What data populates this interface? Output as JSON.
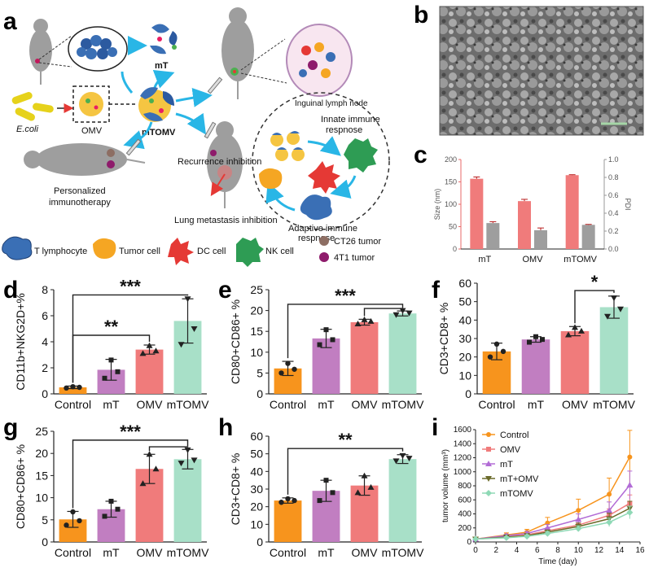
{
  "figure_labels": [
    "a",
    "b",
    "c",
    "d",
    "e",
    "f",
    "g",
    "h",
    "i"
  ],
  "schematic": {
    "labels": {
      "mT": "mT",
      "inguinal": "Inguinal lymph node",
      "ecoli": "E.coli",
      "omv": "OMV",
      "mtomv": "mTOMV",
      "innate": "Innate immune",
      "innate2": "respnose",
      "recurrence": "Recurrence inhibition",
      "personalized1": "Personalized",
      "personalized2": "immunotherapy",
      "lung": "Lung metastasis inhibition",
      "adaptive1": "Adaptive immune",
      "adaptive2": "respnose"
    },
    "legend": {
      "t_lymphocyte": "T lymphocyte",
      "tumor_cell": "Tumor cell",
      "dc_cell": "DC cell",
      "nk_cell": "NK cell",
      "ct26": "CT26 tumor",
      "t4t1": "4T1 tumor"
    },
    "colors": {
      "arrow": "#29b6e6",
      "mouse": "#9e9e9e",
      "tumor": "#f5a623",
      "dc": "#e53935",
      "nk": "#2e9c54",
      "tcell": "#3a6fb5",
      "ct26": "#8d6e63",
      "t4t1": "#8e1b6b"
    }
  },
  "colors": {
    "control": "#f7941d",
    "mT": "#c17ec1",
    "OMV": "#f07b7b",
    "mTOMV": "#a8e0c8",
    "size_bar": "#f07b7b",
    "pdi_bar": "#9e9e9e",
    "size_axis": "#e86a6a",
    "pdi_axis": "#999999"
  },
  "chart_data": [
    {
      "panel": "c",
      "type": "bar",
      "categories": [
        "mT",
        "OMV",
        "mTOMV"
      ],
      "series": [
        {
          "name": "Size (nm)",
          "axis": "left",
          "values": [
            157,
            107,
            165
          ],
          "errors": [
            4,
            4,
            1
          ]
        },
        {
          "name": "PDI",
          "axis": "right",
          "values": [
            0.29,
            0.21,
            0.27
          ],
          "errors": [
            0.015,
            0.025,
            0.005
          ]
        }
      ],
      "ylabel": "Size (nm)",
      "ylabel_right": "PDI",
      "ylim": [
        0,
        200
      ],
      "yticks": [
        0,
        50,
        100,
        150,
        200
      ],
      "ylim_right": [
        0,
        1.0
      ],
      "yticks_right": [
        "0.0",
        "0.2",
        "0.4",
        "0.6",
        "0.8",
        "1.0"
      ]
    },
    {
      "panel": "d",
      "type": "bar",
      "categories": [
        "Control",
        "mT",
        "OMV",
        "mTOMV"
      ],
      "values": [
        0.5,
        1.85,
        3.4,
        5.6
      ],
      "errors": [
        0.1,
        0.8,
        0.35,
        1.7
      ],
      "points": [
        [
          0.45,
          0.5,
          0.55
        ],
        [
          1.2,
          1.7,
          2.6
        ],
        [
          3.1,
          3.3,
          3.7
        ],
        [
          3.8,
          5.0,
          7.3
        ]
      ],
      "ylabel": "CD11b+NKG2D+%",
      "ylim": [
        0,
        8
      ],
      "yticks": [
        0,
        2,
        4,
        6,
        8
      ],
      "significance": [
        {
          "from": 0,
          "to": 3,
          "label": "***",
          "level": 7.6
        },
        {
          "from": 0,
          "to": 2,
          "label": "**",
          "level": 4.5
        }
      ]
    },
    {
      "panel": "e",
      "type": "bar",
      "categories": [
        "Control",
        "mT",
        "OMV",
        "mTOMV"
      ],
      "values": [
        6.1,
        13.3,
        17.2,
        19.3
      ],
      "errors": [
        1.7,
        2.2,
        0.7,
        0.6
      ],
      "points": [
        [
          5.0,
          5.9,
          7.3
        ],
        [
          11.8,
          13.0,
          15.4
        ],
        [
          16.8,
          17.4,
          17.8
        ],
        [
          19.0,
          19.4,
          20.0
        ]
      ],
      "ylabel": "CD80+CD86+ %",
      "ylim": [
        0,
        25
      ],
      "yticks": [
        0,
        5,
        10,
        15,
        20,
        25
      ],
      "significance": [
        {
          "from": 0,
          "to": 3,
          "label": "***",
          "level": 21.5
        },
        {
          "from": 2,
          "to": 3,
          "label": "",
          "level": 20.5
        }
      ]
    },
    {
      "panel": "f",
      "type": "bar",
      "categories": [
        "Control",
        "mT",
        "OMV",
        "mTOMV"
      ],
      "values": [
        23,
        29.5,
        34,
        47
      ],
      "errors": [
        4.5,
        1.5,
        2.5,
        6
      ],
      "points": [
        [
          20,
          23,
          27
        ],
        [
          28,
          29.5,
          31
        ],
        [
          32,
          34,
          36
        ],
        [
          42,
          46,
          52
        ]
      ],
      "ylabel": "CD3+CD8+ %",
      "ylim": [
        0,
        60
      ],
      "yticks": [
        0,
        10,
        20,
        30,
        40,
        50,
        60
      ],
      "significance": [
        {
          "from": 2,
          "to": 3,
          "label": "*",
          "level": 56
        }
      ]
    },
    {
      "panel": "g",
      "type": "bar",
      "categories": [
        "Control",
        "mT",
        "OMV",
        "mTOMV"
      ],
      "values": [
        5.1,
        7.4,
        16.5,
        18.7
      ],
      "errors": [
        1.8,
        1.8,
        3.3,
        2.2
      ],
      "points": [
        [
          3.8,
          4.8,
          6.8
        ],
        [
          5.8,
          7.4,
          9.2
        ],
        [
          13.2,
          16.5,
          19.8
        ],
        [
          17.8,
          18.5,
          20.8
        ]
      ],
      "ylabel": "CD80+CD86+ %",
      "ylim": [
        0,
        25
      ],
      "yticks": [
        0,
        5,
        10,
        15,
        20,
        25
      ],
      "significance": [
        {
          "from": 0,
          "to": 3,
          "label": "***",
          "level": 23.0
        },
        {
          "from": 2,
          "to": 3,
          "label": "",
          "level": 21.5
        }
      ]
    },
    {
      "panel": "h",
      "type": "bar",
      "categories": [
        "Control",
        "mT",
        "OMV",
        "mTOMV"
      ],
      "values": [
        23.5,
        29,
        32,
        47
      ],
      "errors": [
        1.5,
        6,
        5.5,
        2.5
      ],
      "points": [
        [
          22.5,
          23.5,
          24.5
        ],
        [
          23.5,
          28,
          35
        ],
        [
          28,
          31,
          37.5
        ],
        [
          46,
          47.5,
          49
        ]
      ],
      "ylabel": "CD3+CD8+ %",
      "ylim": [
        0,
        60
      ],
      "yticks": [
        0,
        10,
        20,
        30,
        40,
        50,
        60
      ],
      "significance": [
        {
          "from": 0,
          "to": 3,
          "label": "**",
          "level": 53
        }
      ]
    },
    {
      "panel": "i",
      "type": "line",
      "x": [
        0,
        3,
        5,
        7,
        10,
        13,
        15
      ],
      "series": [
        {
          "name": "Control",
          "color": "#f7941d",
          "marker": "circle",
          "values": [
            40,
            100,
            140,
            270,
            450,
            680,
            1210
          ],
          "errors": [
            10,
            30,
            40,
            80,
            160,
            230,
            380
          ]
        },
        {
          "name": "OMV",
          "color": "#f07b7b",
          "marker": "square",
          "values": [
            40,
            80,
            100,
            160,
            240,
            380,
            550
          ],
          "errors": [
            10,
            20,
            30,
            40,
            60,
            90,
            120
          ]
        },
        {
          "name": "mT",
          "color": "#b26cd6",
          "marker": "triangle",
          "values": [
            40,
            90,
            120,
            200,
            320,
            450,
            810
          ],
          "errors": [
            10,
            20,
            30,
            50,
            80,
            120,
            200
          ]
        },
        {
          "name": "mT+OMV",
          "color": "#6b6b2a",
          "marker": "triangle-down",
          "values": [
            40,
            70,
            90,
            140,
            220,
            330,
            480
          ],
          "errors": [
            10,
            20,
            20,
            30,
            50,
            80,
            100
          ]
        },
        {
          "name": "mTOMV",
          "color": "#8fd9b6",
          "marker": "diamond",
          "values": [
            40,
            60,
            80,
            120,
            190,
            280,
            420
          ],
          "errors": [
            10,
            15,
            20,
            30,
            40,
            60,
            90
          ]
        }
      ],
      "xlabel": "Time (day)",
      "ylabel": "tumor volume (mm³)",
      "xlim": [
        0,
        16
      ],
      "xticks": [
        0,
        2,
        4,
        6,
        8,
        10,
        12,
        14,
        16
      ],
      "ylim": [
        0,
        1600
      ],
      "yticks": [
        0,
        200,
        400,
        600,
        800,
        1000,
        1200,
        1400,
        1600
      ],
      "legend_position": "top-left"
    }
  ]
}
